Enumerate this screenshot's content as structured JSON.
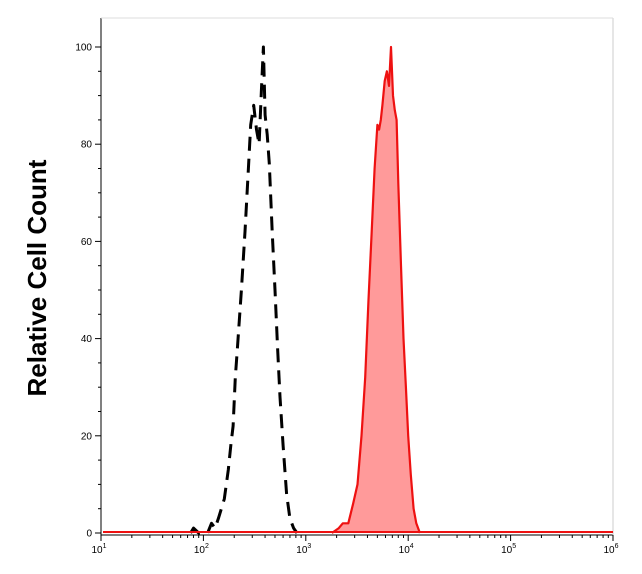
{
  "chart_data": {
    "type": "area",
    "title": "",
    "xlabel": "",
    "ylabel": "Relative Cell Count",
    "x_scale": "log",
    "xlim": [
      10,
      1000000
    ],
    "ylim": [
      0,
      100
    ],
    "y_ticks": [
      0,
      20,
      40,
      60,
      80,
      100
    ],
    "y_tick_labels": [
      "0",
      "20",
      "40",
      "60",
      "80",
      "100"
    ],
    "x_ticks": [
      10,
      100,
      1000,
      10000,
      100000,
      1000000
    ],
    "x_tick_labels": [
      {
        "base": "10",
        "exp": "1"
      },
      {
        "base": "10",
        "exp": "2"
      },
      {
        "base": "10",
        "exp": "3"
      },
      {
        "base": "10",
        "exp": "4"
      },
      {
        "base": "10",
        "exp": "5"
      },
      {
        "base": "10",
        "exp": "6"
      }
    ],
    "grid": false,
    "legend": "none",
    "series": [
      {
        "style": "dashed",
        "color": "#000000",
        "fill": "none",
        "points": [
          [
            75,
            0
          ],
          [
            80,
            1
          ],
          [
            90,
            0
          ],
          [
            110,
            0
          ],
          [
            120,
            2
          ],
          [
            130,
            1
          ],
          [
            140,
            3
          ],
          [
            160,
            7
          ],
          [
            175,
            13
          ],
          [
            185,
            18
          ],
          [
            195,
            22
          ],
          [
            205,
            32
          ],
          [
            215,
            38
          ],
          [
            235,
            50
          ],
          [
            255,
            62
          ],
          [
            275,
            75
          ],
          [
            290,
            84
          ],
          [
            310,
            88
          ],
          [
            330,
            83
          ],
          [
            350,
            80
          ],
          [
            370,
            92
          ],
          [
            385,
            100
          ],
          [
            400,
            86
          ],
          [
            420,
            82
          ],
          [
            440,
            76
          ],
          [
            470,
            62
          ],
          [
            500,
            50
          ],
          [
            530,
            38
          ],
          [
            560,
            28
          ],
          [
            600,
            18
          ],
          [
            650,
            8
          ],
          [
            700,
            3
          ],
          [
            760,
            1
          ],
          [
            820,
            0
          ]
        ]
      },
      {
        "style": "solid",
        "color": "#ee1111",
        "fill": "#ff9a9a",
        "points": [
          [
            1800,
            0
          ],
          [
            2100,
            1
          ],
          [
            2300,
            2
          ],
          [
            2600,
            2
          ],
          [
            2900,
            6
          ],
          [
            3200,
            10
          ],
          [
            3500,
            20
          ],
          [
            3800,
            32
          ],
          [
            4100,
            48
          ],
          [
            4400,
            62
          ],
          [
            4700,
            75
          ],
          [
            5000,
            84
          ],
          [
            5200,
            83
          ],
          [
            5400,
            85
          ],
          [
            5600,
            88
          ],
          [
            5900,
            93
          ],
          [
            6200,
            95
          ],
          [
            6500,
            92
          ],
          [
            6800,
            100
          ],
          [
            7100,
            90
          ],
          [
            7400,
            87
          ],
          [
            7700,
            85
          ],
          [
            8000,
            72
          ],
          [
            8500,
            55
          ],
          [
            9000,
            40
          ],
          [
            9500,
            30
          ],
          [
            10000,
            20
          ],
          [
            10600,
            12
          ],
          [
            11300,
            5
          ],
          [
            12000,
            2
          ],
          [
            13000,
            0
          ]
        ]
      }
    ]
  }
}
